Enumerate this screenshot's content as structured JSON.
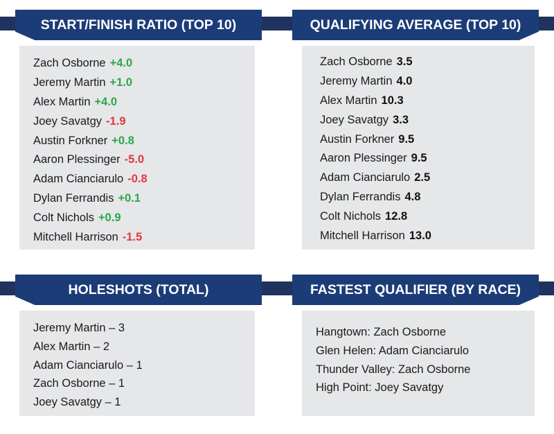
{
  "start_finish": {
    "title": "START/FINISH RATIO (TOP 10)",
    "rows": [
      {
        "name": "Zach Osborne",
        "value": "+4.0",
        "sign": "pos"
      },
      {
        "name": "Jeremy Martin",
        "value": "+1.0",
        "sign": "pos"
      },
      {
        "name": "Alex Martin",
        "value": "+4.0",
        "sign": "pos"
      },
      {
        "name": "Joey Savatgy",
        "value": "-1.9",
        "sign": "neg"
      },
      {
        "name": "Austin Forkner",
        "value": "+0.8",
        "sign": "pos"
      },
      {
        "name": "Aaron Plessinger",
        "value": "-5.0",
        "sign": "neg"
      },
      {
        "name": "Adam Cianciarulo",
        "value": "-0.8",
        "sign": "neg"
      },
      {
        "name": "Dylan Ferrandis",
        "value": "+0.1",
        "sign": "pos"
      },
      {
        "name": "Colt Nichols",
        "value": "+0.9",
        "sign": "pos"
      },
      {
        "name": "Mitchell Harrison",
        "value": "-1.5",
        "sign": "neg"
      }
    ],
    "colors": {
      "positive": "#2aa84a",
      "negative": "#e0393e"
    }
  },
  "qualifying": {
    "title": "QUALIFYING AVERAGE (TOP 10)",
    "rows": [
      {
        "name": "Zach Osborne",
        "value": "3.5"
      },
      {
        "name": "Jeremy Martin",
        "value": "4.0"
      },
      {
        "name": "Alex Martin",
        "value": "10.3"
      },
      {
        "name": "Joey Savatgy",
        "value": "3.3"
      },
      {
        "name": "Austin Forkner",
        "value": "9.5"
      },
      {
        "name": "Aaron Plessinger",
        "value": "9.5"
      },
      {
        "name": "Adam Cianciarulo",
        "value": "2.5"
      },
      {
        "name": "Dylan Ferrandis",
        "value": "4.8"
      },
      {
        "name": "Colt Nichols",
        "value": "12.8"
      },
      {
        "name": "Mitchell Harrison",
        "value": "13.0"
      }
    ]
  },
  "holeshots": {
    "title": "HOLESHOTS (TOTAL)",
    "rows": [
      "Jeremy Martin – 3",
      "Alex Martin – 2",
      "Adam Cianciarulo – 1",
      "Zach Osborne – 1",
      "Joey Savatgy – 1"
    ]
  },
  "fastest": {
    "title": "FASTEST QUALIFIER (BY RACE)",
    "rows": [
      "Hangtown: Zach Osborne",
      "Glen Helen: Adam Cianciarulo",
      "Thunder Valley: Zach Osborne",
      "High Point: Joey Savatgy"
    ]
  },
  "theme": {
    "banner": "#1c3c78",
    "banner_band": "#20335e",
    "box": "#e6e7e9"
  }
}
